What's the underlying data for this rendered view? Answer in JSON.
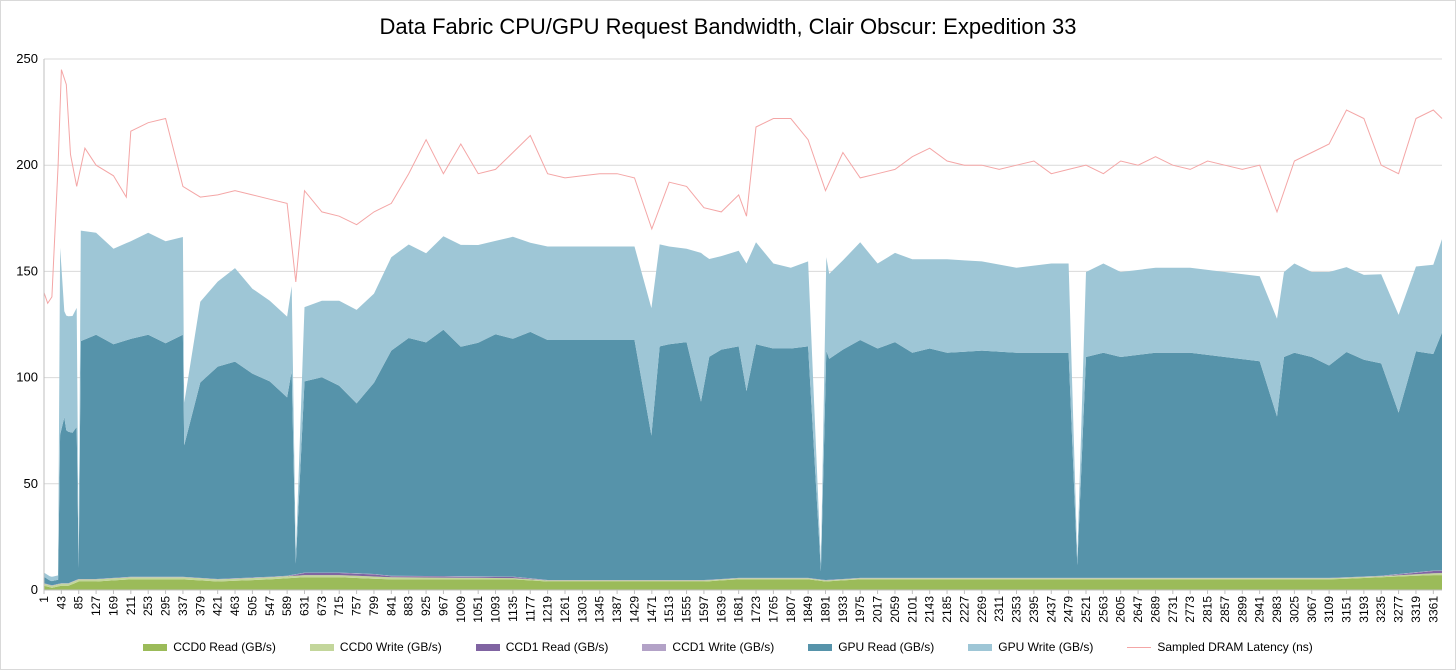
{
  "chart_data": {
    "type": "area",
    "title": "Data Fabric CPU/GPU Request Bandwidth, Clair Obscur: Expedition 33",
    "xlabel": "",
    "ylabel": "",
    "ylim": [
      0,
      250
    ],
    "yticks": [
      "0",
      "50",
      "100",
      "150",
      "200",
      "250"
    ],
    "xlim": [
      1,
      3382
    ],
    "x_tick_labels": [
      "1",
      "43",
      "85",
      "127",
      "169",
      "211",
      "253",
      "295",
      "337",
      "379",
      "421",
      "463",
      "505",
      "547",
      "589",
      "631",
      "673",
      "715",
      "757",
      "799",
      "841",
      "883",
      "925",
      "967",
      "1009",
      "1051",
      "1093",
      "1135",
      "1177",
      "1219",
      "1261",
      "1303",
      "1345",
      "1387",
      "1429",
      "1471",
      "1513",
      "1555",
      "1597",
      "1639",
      "1681",
      "1723",
      "1765",
      "1807",
      "1849",
      "1891",
      "1933",
      "1975",
      "2017",
      "2059",
      "2101",
      "2143",
      "2185",
      "2227",
      "2269",
      "2311",
      "2353",
      "2395",
      "2437",
      "2479",
      "2521",
      "2563",
      "2605",
      "2647",
      "2689",
      "2731",
      "2773",
      "2815",
      "2857",
      "2899",
      "2941",
      "2983",
      "3025",
      "3067",
      "3109",
      "3151",
      "3193",
      "3235",
      "3277",
      "3319",
      "3361"
    ],
    "grid": "horizontal",
    "legend_position": "bottom",
    "stacked": true,
    "series": [
      {
        "name": "CCD0 Read (GB/s)",
        "color": "#9bbb59",
        "x": [
          1,
          20,
          43,
          60,
          85,
          127,
          211,
          337,
          421,
          547,
          631,
          715,
          841,
          1009,
          1135,
          1219,
          1345,
          1471,
          1597,
          1681,
          1765,
          1849,
          1891,
          1975,
          2101,
          2227,
          2353,
          2479,
          2605,
          2731,
          2857,
          2983,
          3109,
          3235,
          3361,
          3382
        ],
        "values": [
          2,
          1,
          2,
          2,
          4,
          4,
          5,
          5,
          4,
          5,
          6,
          6,
          5,
          5,
          5,
          4,
          4,
          4,
          4,
          5,
          5,
          5,
          4,
          5,
          5,
          5,
          5,
          5,
          5,
          5,
          5,
          5,
          5,
          6,
          7,
          7
        ]
      },
      {
        "name": "CCD0 Write (GB/s)",
        "color": "#c3d69b",
        "x": [
          1,
          85,
          337,
          631,
          841,
          1219,
          1597,
          1849,
          2101,
          2479,
          2857,
          3235,
          3382
        ],
        "values": [
          1,
          1,
          1,
          1,
          1,
          0.5,
          0.5,
          0.5,
          0.5,
          0.5,
          0.5,
          0.5,
          1
        ]
      },
      {
        "name": "CCD1 Read (GB/s)",
        "color": "#8064a2",
        "x": [
          1,
          589,
          631,
          715,
          799,
          841,
          1009,
          1135,
          1219,
          3235,
          3361,
          3382
        ],
        "values": [
          0,
          0,
          1,
          1,
          1,
          0.5,
          0.5,
          0.5,
          0,
          0,
          1,
          1
        ]
      },
      {
        "name": "CCD1 Write (GB/s)",
        "color": "#b3a2c7",
        "x": [
          1,
          3382
        ],
        "values": [
          0.2,
          0.2
        ]
      },
      {
        "name": "GPU Read (GB/s)",
        "color": "#5693aa",
        "x": [
          1,
          15,
          25,
          35,
          40,
          50,
          55,
          70,
          80,
          85,
          90,
          127,
          169,
          211,
          253,
          295,
          337,
          340,
          379,
          421,
          463,
          505,
          547,
          589,
          600,
          610,
          631,
          673,
          715,
          757,
          799,
          841,
          883,
          925,
          967,
          1009,
          1051,
          1093,
          1135,
          1177,
          1219,
          1429,
          1470,
          1490,
          1513,
          1555,
          1590,
          1610,
          1639,
          1681,
          1700,
          1723,
          1765,
          1807,
          1849,
          1880,
          1893,
          1900,
          1933,
          1975,
          2017,
          2059,
          2101,
          2143,
          2185,
          2269,
          2353,
          2437,
          2479,
          2500,
          2521,
          2563,
          2605,
          2689,
          2773,
          2857,
          2941,
          2983,
          3000,
          3025,
          3067,
          3109,
          3151,
          3193,
          3235,
          3277,
          3319,
          3361,
          3382
        ],
        "values": [
          3,
          2,
          2,
          2,
          70,
          78,
          72,
          70,
          72,
          5,
          112,
          115,
          110,
          112,
          114,
          110,
          114,
          62,
          92,
          100,
          102,
          96,
          92,
          84,
          96,
          5,
          90,
          92,
          88,
          80,
          90,
          106,
          112,
          110,
          116,
          108,
          110,
          114,
          112,
          116,
          113,
          113,
          68,
          110,
          111,
          112,
          84,
          105,
          108,
          109,
          88,
          110,
          108,
          108,
          109,
          4,
          108,
          104,
          108,
          112,
          108,
          111,
          106,
          108,
          106,
          107,
          106,
          106,
          106,
          6,
          104,
          106,
          104,
          106,
          106,
          104,
          102,
          76,
          104,
          106,
          104,
          100,
          106,
          102,
          100,
          76,
          104,
          102,
          112
        ]
      },
      {
        "name": "GPU Write (GB/s)",
        "color": "#9ec6d6",
        "x": [
          1,
          15,
          25,
          35,
          40,
          50,
          55,
          70,
          80,
          85,
          90,
          127,
          169,
          211,
          253,
          295,
          337,
          340,
          379,
          421,
          463,
          505,
          547,
          589,
          600,
          610,
          631,
          673,
          715,
          757,
          799,
          841,
          883,
          925,
          967,
          1009,
          1051,
          1093,
          1135,
          1177,
          1219,
          1429,
          1470,
          1490,
          1513,
          1555,
          1590,
          1610,
          1639,
          1681,
          1700,
          1723,
          1765,
          1807,
          1849,
          1880,
          1893,
          1900,
          1933,
          1975,
          2017,
          2059,
          2101,
          2143,
          2185,
          2269,
          2353,
          2437,
          2479,
          2500,
          2521,
          2563,
          2605,
          2689,
          2773,
          2857,
          2941,
          2983,
          3000,
          3025,
          3067,
          3109,
          3151,
          3193,
          3235,
          3277,
          3319,
          3361,
          3382
        ],
        "values": [
          2,
          2,
          2,
          2,
          88,
          50,
          54,
          55,
          56,
          5,
          52,
          48,
          45,
          46,
          48,
          48,
          46,
          20,
          38,
          40,
          44,
          40,
          38,
          38,
          40,
          4,
          35,
          36,
          40,
          44,
          42,
          44,
          44,
          42,
          44,
          48,
          46,
          44,
          48,
          42,
          44,
          44,
          60,
          48,
          46,
          44,
          70,
          46,
          44,
          45,
          60,
          48,
          40,
          38,
          40,
          4,
          44,
          40,
          42,
          46,
          40,
          42,
          44,
          42,
          44,
          42,
          40,
          42,
          42,
          4,
          40,
          42,
          40,
          40,
          40,
          40,
          40,
          46,
          40,
          42,
          40,
          44,
          40,
          40,
          42,
          46,
          40,
          42,
          44
        ]
      },
      {
        "name": "Sampled DRAM Latency (ns)",
        "color": "#f4a6a6",
        "kind": "line",
        "x": [
          1,
          10,
          20,
          35,
          43,
          55,
          65,
          80,
          100,
          127,
          169,
          200,
          211,
          253,
          295,
          337,
          379,
          421,
          463,
          505,
          547,
          589,
          610,
          631,
          673,
          715,
          757,
          799,
          841,
          883,
          925,
          967,
          1009,
          1051,
          1093,
          1135,
          1177,
          1219,
          1261,
          1303,
          1345,
          1387,
          1429,
          1471,
          1513,
          1555,
          1597,
          1639,
          1681,
          1700,
          1723,
          1765,
          1807,
          1849,
          1891,
          1933,
          1975,
          2017,
          2059,
          2101,
          2143,
          2185,
          2227,
          2269,
          2311,
          2353,
          2395,
          2437,
          2479,
          2521,
          2563,
          2605,
          2647,
          2689,
          2731,
          2773,
          2815,
          2857,
          2899,
          2941,
          2983,
          3025,
          3067,
          3109,
          3151,
          3193,
          3235,
          3277,
          3319,
          3361,
          3382
        ],
        "values": [
          140,
          135,
          138,
          200,
          245,
          238,
          205,
          190,
          208,
          200,
          195,
          185,
          216,
          220,
          222,
          190,
          185,
          186,
          188,
          186,
          184,
          182,
          145,
          188,
          178,
          176,
          172,
          178,
          182,
          196,
          212,
          196,
          210,
          196,
          198,
          206,
          214,
          196,
          194,
          195,
          196,
          196,
          194,
          170,
          192,
          190,
          180,
          178,
          186,
          176,
          218,
          222,
          222,
          212,
          188,
          206,
          194,
          196,
          198,
          204,
          208,
          202,
          200,
          200,
          198,
          200,
          202,
          196,
          198,
          200,
          196,
          202,
          200,
          204,
          200,
          198,
          202,
          200,
          198,
          200,
          178,
          202,
          206,
          210,
          226,
          222,
          200,
          196,
          222,
          226,
          222
        ]
      }
    ]
  }
}
